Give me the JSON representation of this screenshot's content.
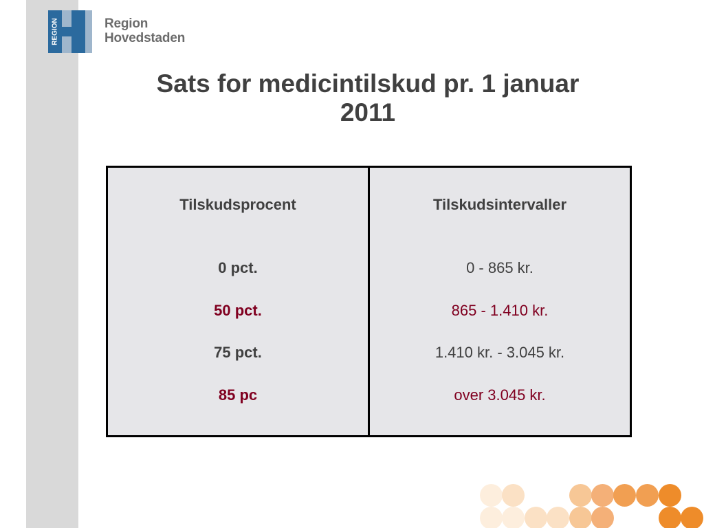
{
  "logo": {
    "mark_text": "REGION",
    "line1": "Region",
    "line2": "Hovedstaden",
    "colors": {
      "mark_blue": "#2b6a9e",
      "mark_light": "#9fb6cc",
      "text_gray": "#6b6b6b"
    }
  },
  "title": {
    "line1": "Sats for medicintilskud pr. 1 januar",
    "line2": "2011"
  },
  "table": {
    "headers": [
      "Tilskudsprocent",
      "Tilskudsintervaller"
    ],
    "rows": [
      {
        "percent": "0 pct.",
        "interval": "0 - 865 kr.",
        "color": "#404040"
      },
      {
        "percent": "50 pct.",
        "interval": "865 - 1.410 kr.",
        "color": "#800020"
      },
      {
        "percent": "75 pct.",
        "interval": "1.410 kr. - 3.045 kr.",
        "color": "#404040"
      },
      {
        "percent": "85 pc",
        "interval": "over 3.045 kr.",
        "color": "#800020"
      }
    ],
    "background": "#e6e6e9",
    "border": "#000000"
  },
  "decoration": {
    "dot_colors": [
      "#fdeedd",
      "#fbe1c5",
      "#f7c796",
      "#f4b078",
      "#f19f52",
      "#ee8c2a"
    ]
  }
}
